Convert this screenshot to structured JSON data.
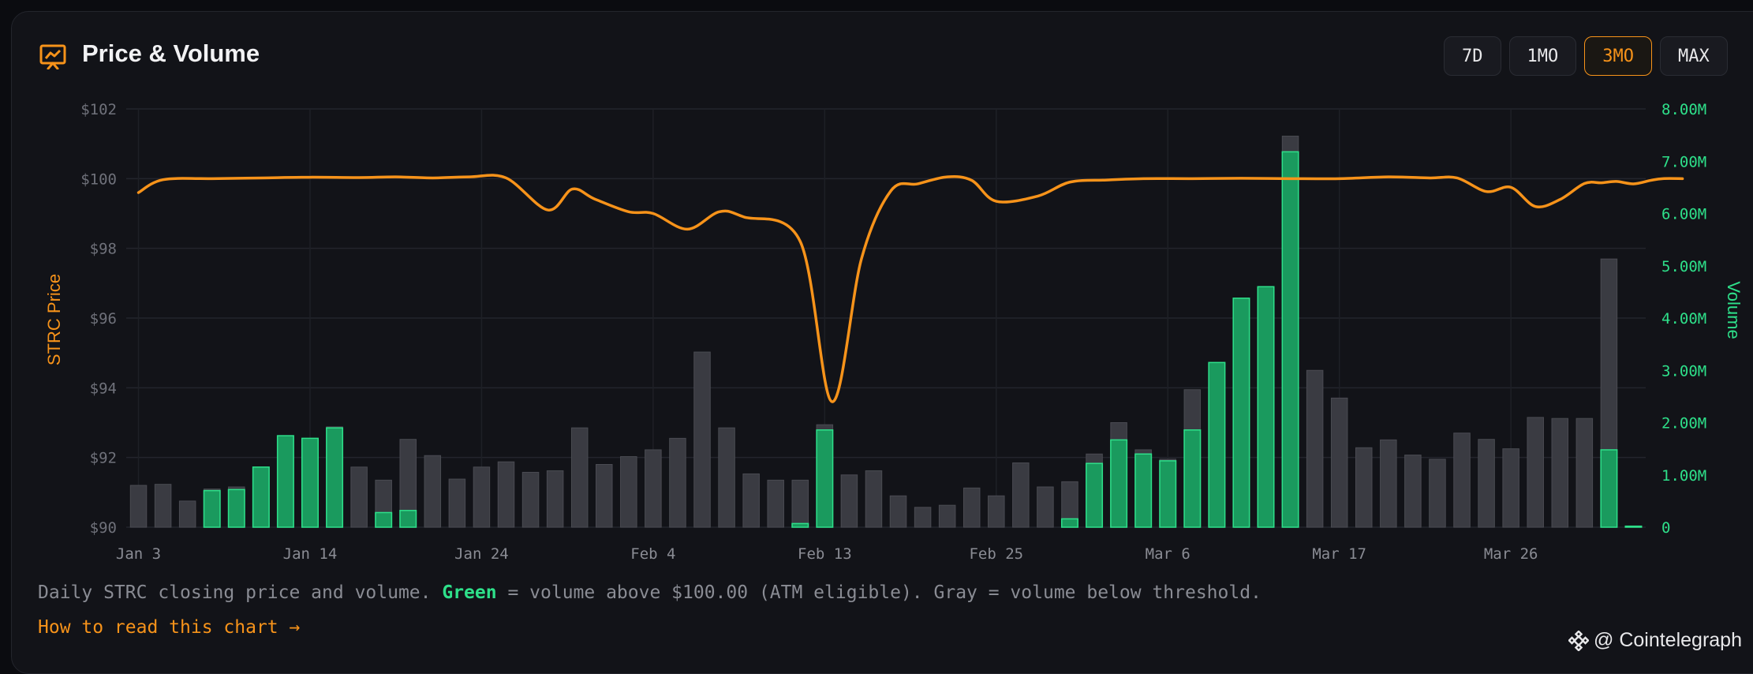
{
  "header": {
    "title": "Price & Volume",
    "icon": "chart-presentation-icon",
    "ranges": [
      {
        "label": "7D",
        "active": false
      },
      {
        "label": "1MO",
        "active": false
      },
      {
        "label": "3MO",
        "active": true
      },
      {
        "label": "MAX",
        "active": false
      }
    ]
  },
  "colors": {
    "accent": "#f7931a",
    "green": "#2ee08a",
    "gray_bar": "#3a3b42"
  },
  "chart_data": {
    "type": "bar+line",
    "y_left_label": "STRC Price",
    "y_right_label": "Volume",
    "y_left_ticks": [
      "$90",
      "$92",
      "$94",
      "$96",
      "$98",
      "$100",
      "$102"
    ],
    "y_left_range": [
      90,
      102
    ],
    "y_right_ticks": [
      "0",
      "1.00M",
      "2.00M",
      "3.00M",
      "4.00M",
      "5.00M",
      "6.00M",
      "7.00M",
      "8.00M"
    ],
    "y_right_range": [
      0,
      8000000
    ],
    "x_ticks": [
      "Jan 3",
      "Jan 14",
      "Jan 24",
      "Feb 4",
      "Feb 13",
      "Feb 25",
      "Mar 6",
      "Mar 17",
      "Mar 26"
    ],
    "x_tick_bar_index": [
      0,
      7,
      14,
      21,
      28,
      35,
      42,
      49,
      56
    ],
    "grid": true,
    "volume_series": [
      {
        "total": 0.8,
        "green": 0
      },
      {
        "total": 0.82,
        "green": 0
      },
      {
        "total": 0.5,
        "green": 0
      },
      {
        "total": 0.73,
        "green": 0.7
      },
      {
        "total": 0.77,
        "green": 0.72
      },
      {
        "total": 1.15,
        "green": 1.15
      },
      {
        "total": 1.75,
        "green": 1.75
      },
      {
        "total": 1.7,
        "green": 1.7
      },
      {
        "total": 1.92,
        "green": 1.9
      },
      {
        "total": 1.15,
        "green": 0
      },
      {
        "total": 0.9,
        "green": 0.28
      },
      {
        "total": 1.68,
        "green": 0.32
      },
      {
        "total": 1.37,
        "green": 0
      },
      {
        "total": 0.92,
        "green": 0
      },
      {
        "total": 1.15,
        "green": 0
      },
      {
        "total": 1.25,
        "green": 0
      },
      {
        "total": 1.05,
        "green": 0
      },
      {
        "total": 1.08,
        "green": 0
      },
      {
        "total": 1.9,
        "green": 0
      },
      {
        "total": 1.2,
        "green": 0
      },
      {
        "total": 1.35,
        "green": 0
      },
      {
        "total": 1.48,
        "green": 0
      },
      {
        "total": 1.7,
        "green": 0
      },
      {
        "total": 3.35,
        "green": 0
      },
      {
        "total": 1.9,
        "green": 0
      },
      {
        "total": 1.02,
        "green": 0
      },
      {
        "total": 0.9,
        "green": 0
      },
      {
        "total": 0.9,
        "green": 0.07
      },
      {
        "total": 1.96,
        "green": 1.86
      },
      {
        "total": 1.0,
        "green": 0
      },
      {
        "total": 1.08,
        "green": 0
      },
      {
        "total": 0.6,
        "green": 0
      },
      {
        "total": 0.38,
        "green": 0
      },
      {
        "total": 0.42,
        "green": 0
      },
      {
        "total": 0.75,
        "green": 0
      },
      {
        "total": 0.6,
        "green": 0
      },
      {
        "total": 1.23,
        "green": 0
      },
      {
        "total": 0.77,
        "green": 0
      },
      {
        "total": 0.87,
        "green": 0.16
      },
      {
        "total": 1.4,
        "green": 1.22
      },
      {
        "total": 2.0,
        "green": 1.67
      },
      {
        "total": 1.48,
        "green": 1.4
      },
      {
        "total": 1.3,
        "green": 1.27
      },
      {
        "total": 2.63,
        "green": 1.86
      },
      {
        "total": 3.15,
        "green": 3.15
      },
      {
        "total": 4.38,
        "green": 4.38
      },
      {
        "total": 4.6,
        "green": 4.6
      },
      {
        "total": 7.48,
        "green": 7.18
      },
      {
        "total": 3.0,
        "green": 0
      },
      {
        "total": 2.47,
        "green": 0
      },
      {
        "total": 1.52,
        "green": 0
      },
      {
        "total": 1.67,
        "green": 0
      },
      {
        "total": 1.38,
        "green": 0
      },
      {
        "total": 1.3,
        "green": 0
      },
      {
        "total": 1.8,
        "green": 0
      },
      {
        "total": 1.68,
        "green": 0
      },
      {
        "total": 1.5,
        "green": 0
      },
      {
        "total": 2.1,
        "green": 0
      },
      {
        "total": 2.08,
        "green": 0
      },
      {
        "total": 2.08,
        "green": 0
      },
      {
        "total": 5.13,
        "green": 1.48
      },
      {
        "total": 0.02,
        "green": 0.02
      }
    ],
    "price_series": [
      99.6,
      99.97,
      100.0,
      100.02,
      100.04,
      100.03,
      100.05,
      100.02,
      100.05,
      100.02,
      99.1,
      99.7,
      99.42,
      99.05,
      99.0,
      98.55,
      99.05,
      98.9,
      98.2,
      93.6,
      97.7,
      99.65,
      99.85,
      100.05,
      99.95,
      99.35,
      99.5,
      99.9,
      99.96,
      100.0,
      100.0,
      100.01,
      100.0,
      100.0,
      100.05,
      100.02,
      100.02,
      99.63,
      99.75,
      99.2,
      99.4,
      99.86,
      99.88,
      99.92,
      99.85,
      99.95,
      100.0,
      100.0
    ],
    "price_x_bar_index": [
      0,
      1,
      3,
      5,
      7,
      9,
      10.5,
      12,
      13.5,
      15,
      16.7,
      17.7,
      18.6,
      20,
      21,
      22.4,
      23.7,
      24.7,
      27,
      28.3,
      29.5,
      30.7,
      31.8,
      33,
      34,
      35,
      36.7,
      38,
      39.5,
      41,
      43,
      45,
      47,
      49,
      51,
      52.7,
      53.8,
      55,
      56,
      57,
      58,
      59,
      59.7,
      60.3,
      61,
      61.7,
      62.2,
      63
    ]
  },
  "caption": {
    "prefix": "Daily STRC closing price and volume. ",
    "green_word": "Green",
    "suffix": " = volume above $100.00 (ATM eligible). Gray = volume below threshold."
  },
  "howto_link": "How to read this chart →",
  "watermark": {
    "text": "@ Cointelegraph"
  }
}
